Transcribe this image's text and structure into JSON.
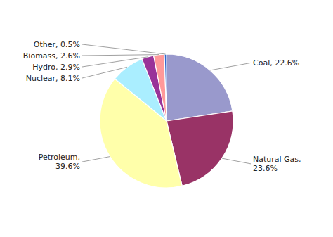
{
  "chart_data": {
    "type": "pie",
    "values": [
      22.6,
      23.6,
      39.6,
      8.1,
      2.9,
      2.6,
      0.5
    ],
    "colors": [
      "#9999cc",
      "#993366",
      "#ffffaa",
      "#aaeeff",
      "#993399",
      "#ff9999",
      "#3366cc"
    ],
    "value_labels": [
      "Coal, 22.6%",
      "Natural Gas,\n23.6%",
      "Petroleum,\n39.6%",
      "Nuclear, 8.1%",
      "Hydro, 2.9%",
      "Biomass, 2.6%",
      "Other, 0.5%"
    ],
    "data_labels": true
  }
}
